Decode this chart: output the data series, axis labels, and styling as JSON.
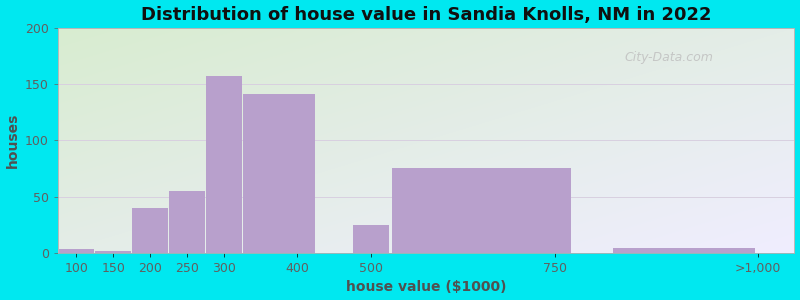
{
  "title": "Distribution of house value in Sandia Knolls, NM in 2022",
  "xlabel": "house value ($1000)",
  "ylabel": "houses",
  "bar_color": "#b8a0cc",
  "background_outer": "#00e8f0",
  "ylim": [
    0,
    200
  ],
  "yticks": [
    0,
    50,
    100,
    150,
    200
  ],
  "bar_lefts": [
    75,
    125,
    175,
    225,
    275,
    325,
    475,
    525,
    825
  ],
  "bar_widths": [
    50,
    50,
    50,
    50,
    50,
    100,
    50,
    250,
    200
  ],
  "bar_heights": [
    3,
    2,
    40,
    55,
    157,
    141,
    25,
    75,
    4
  ],
  "x_tick_positions": [
    100,
    150,
    200,
    250,
    300,
    400,
    500,
    750,
    1025
  ],
  "x_tick_labels": [
    "100",
    "150",
    "200",
    "250",
    "300",
    "400",
    "500",
    "750",
    ">1,000"
  ],
  "xlim": [
    75,
    1075
  ],
  "watermark": "City-Data.com",
  "grid_color": "#d8d0e0",
  "grid_linewidth": 0.7,
  "bg_colors": [
    "#d8ecd0",
    "#f5f4ff"
  ],
  "title_fontsize": 13,
  "axis_label_fontsize": 10,
  "tick_fontsize": 9,
  "tick_color": "#606060",
  "label_color": "#505050",
  "title_color": "#101010"
}
